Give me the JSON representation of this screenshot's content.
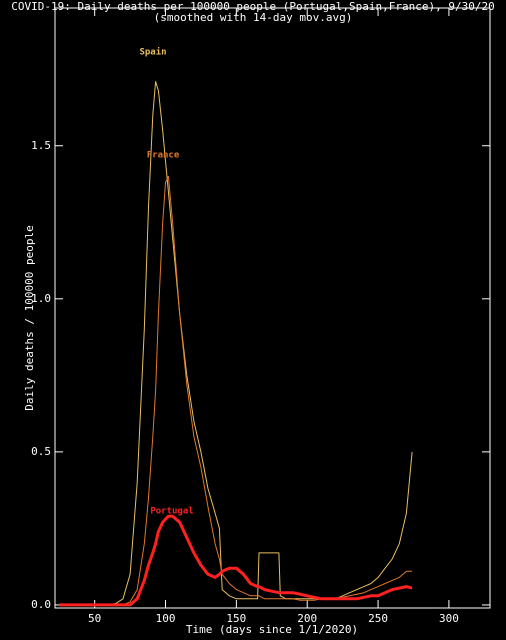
{
  "chart_data": {
    "type": "line",
    "title": "COVID-19: Daily deaths per 100000 people (Portugal,Spain,France), 9/30/20",
    "subtitle": "(smoothed with 14-day mov.avg)",
    "x_label": "Time (days since 1/1/2020)",
    "y_label": "Daily deaths / 100000 people",
    "x": [
      25,
      30,
      35,
      40,
      45,
      50,
      55,
      60,
      65,
      70,
      75,
      80,
      85,
      88,
      91,
      93,
      95,
      98,
      100,
      102,
      105,
      110,
      115,
      120,
      125,
      130,
      135,
      138,
      140,
      145,
      150,
      155,
      160,
      165,
      166,
      170,
      175,
      180,
      181,
      185,
      190,
      195,
      200,
      205,
      210,
      215,
      220,
      225,
      230,
      235,
      240,
      245,
      250,
      255,
      260,
      265,
      270,
      274
    ],
    "series": [
      {
        "name": "Spain",
        "color": "#e8c060",
        "values": [
          0,
          0,
          0,
          0,
          0,
          0,
          0,
          0,
          0.005,
          0.02,
          0.1,
          0.4,
          0.9,
          1.3,
          1.6,
          1.71,
          1.68,
          1.55,
          1.45,
          1.35,
          1.2,
          0.95,
          0.75,
          0.6,
          0.5,
          0.38,
          0.3,
          0.25,
          0.05,
          0.03,
          0.02,
          0.02,
          0.02,
          0.02,
          0.17,
          0.17,
          0.17,
          0.17,
          0.03,
          0.02,
          0.02,
          0.02,
          0.02,
          0.02,
          0.02,
          0.02,
          0.02,
          0.03,
          0.04,
          0.05,
          0.06,
          0.07,
          0.09,
          0.12,
          0.15,
          0.2,
          0.3,
          0.5
        ]
      },
      {
        "name": "France",
        "color": "#e07828",
        "values": [
          0,
          0,
          0,
          0,
          0,
          0,
          0,
          0,
          0,
          0,
          0.01,
          0.05,
          0.2,
          0.35,
          0.55,
          0.7,
          0.95,
          1.25,
          1.38,
          1.4,
          1.25,
          0.95,
          0.72,
          0.55,
          0.45,
          0.32,
          0.2,
          0.15,
          0.1,
          0.07,
          0.05,
          0.04,
          0.03,
          0.03,
          0.03,
          0.02,
          0.02,
          0.02,
          0.02,
          0.02,
          0.02,
          0.015,
          0.015,
          0.015,
          0.02,
          0.02,
          0.02,
          0.025,
          0.03,
          0.035,
          0.04,
          0.05,
          0.06,
          0.07,
          0.08,
          0.09,
          0.11,
          0.11
        ]
      },
      {
        "name": "Portugal",
        "color": "#ff2020",
        "values": [
          0,
          0,
          0,
          0,
          0,
          0,
          0,
          0,
          0,
          0,
          0,
          0.02,
          0.08,
          0.13,
          0.17,
          0.2,
          0.24,
          0.27,
          0.28,
          0.29,
          0.29,
          0.27,
          0.22,
          0.17,
          0.13,
          0.1,
          0.09,
          0.1,
          0.11,
          0.12,
          0.12,
          0.1,
          0.07,
          0.06,
          0.06,
          0.05,
          0.045,
          0.04,
          0.04,
          0.04,
          0.04,
          0.035,
          0.03,
          0.025,
          0.02,
          0.02,
          0.02,
          0.02,
          0.02,
          0.02,
          0.025,
          0.03,
          0.03,
          0.04,
          0.05,
          0.055,
          0.06,
          0.055
        ]
      }
    ],
    "xlim": [
      22,
      329
    ],
    "ylim": [
      -0.01,
      1.95
    ],
    "xticks": [
      50,
      100,
      150,
      200,
      250,
      300
    ],
    "yticks": [
      {
        "value": 0,
        "label": "0.0"
      },
      0.5,
      {
        "value": 1,
        "label": "1.0"
      },
      1.5
    ]
  }
}
